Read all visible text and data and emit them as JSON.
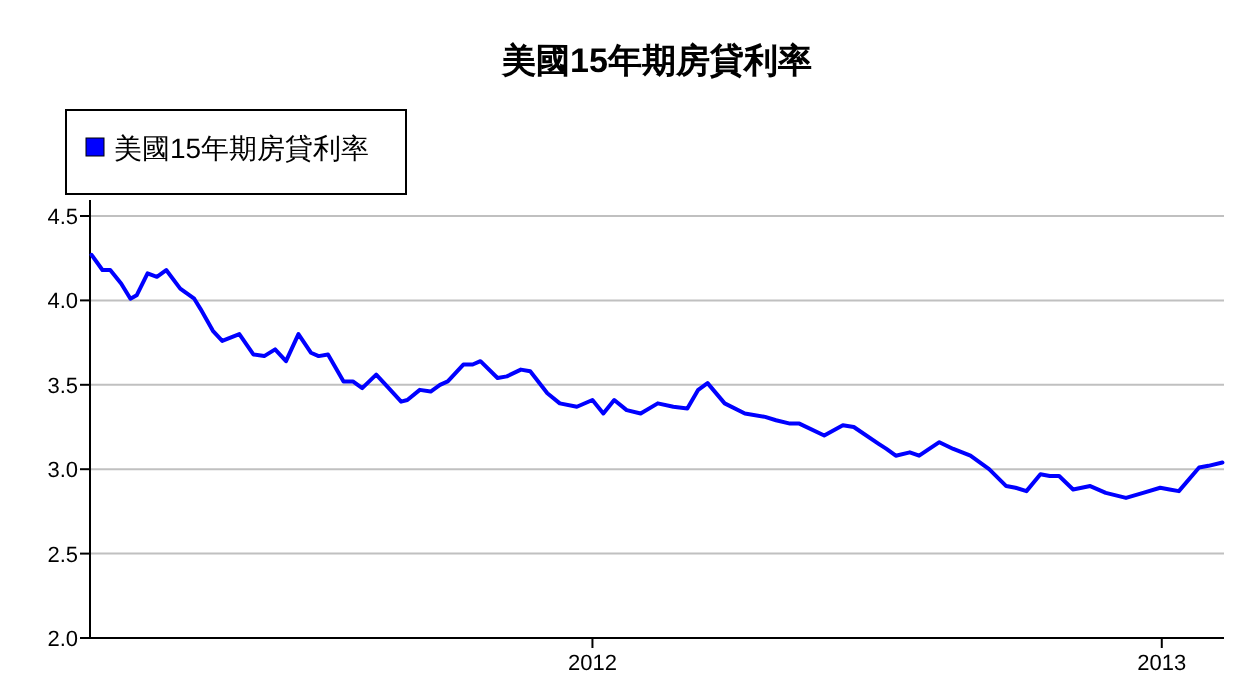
{
  "chart_data": {
    "type": "line",
    "title": "美國15年期房貸利率",
    "x": [
      "2011-02-13",
      "2011-02-20",
      "2011-02-25",
      "2011-03-04",
      "2011-03-10",
      "2011-03-14",
      "2011-03-21",
      "2011-03-27",
      "2011-04-02",
      "2011-04-11",
      "2011-04-20",
      "2011-04-24",
      "2011-05-02",
      "2011-05-08",
      "2011-05-19",
      "2011-05-28",
      "2011-06-04",
      "2011-06-11",
      "2011-06-18",
      "2011-06-26",
      "2011-07-04",
      "2011-07-09",
      "2011-07-15",
      "2011-07-25",
      "2011-07-31",
      "2011-08-06",
      "2011-08-15",
      "2011-08-22",
      "2011-08-31",
      "2011-09-04",
      "2011-09-12",
      "2011-09-19",
      "2011-09-25",
      "2011-09-30",
      "2011-10-10",
      "2011-10-16",
      "2011-10-21",
      "2011-11-01",
      "2011-11-07",
      "2011-11-16",
      "2011-11-22",
      "2011-12-03",
      "2011-12-11",
      "2011-12-22",
      "2012-01-01",
      "2012-01-08",
      "2012-01-15",
      "2012-01-23",
      "2012-02-01",
      "2012-02-12",
      "2012-02-22",
      "2012-03-02",
      "2012-03-09",
      "2012-03-15",
      "2012-03-26",
      "2012-04-08",
      "2012-04-21",
      "2012-04-28",
      "2012-05-07",
      "2012-05-13",
      "2012-05-29",
      "2012-06-10",
      "2012-06-17",
      "2012-07-03",
      "2012-07-08",
      "2012-07-14",
      "2012-07-23",
      "2012-07-29",
      "2012-08-11",
      "2012-08-20",
      "2012-08-31",
      "2012-09-12",
      "2012-09-23",
      "2012-09-29",
      "2012-10-06",
      "2012-10-15",
      "2012-10-21",
      "2012-10-27",
      "2012-11-05",
      "2012-11-16",
      "2012-11-26",
      "2012-12-09",
      "2012-12-20",
      "2012-12-31",
      "2013-01-06",
      "2013-01-12",
      "2013-01-25",
      "2013-01-31",
      "2013-02-09"
    ],
    "series": [
      {
        "name": "美國15年期房貸利率",
        "color": "#0000ff",
        "values": [
          4.27,
          4.18,
          4.18,
          4.1,
          4.01,
          4.03,
          4.16,
          4.14,
          4.18,
          4.07,
          4.01,
          3.95,
          3.82,
          3.76,
          3.8,
          3.68,
          3.67,
          3.71,
          3.64,
          3.8,
          3.69,
          3.67,
          3.68,
          3.52,
          3.52,
          3.48,
          3.56,
          3.49,
          3.4,
          3.41,
          3.47,
          3.46,
          3.5,
          3.52,
          3.62,
          3.62,
          3.64,
          3.54,
          3.55,
          3.59,
          3.58,
          3.45,
          3.39,
          3.37,
          3.41,
          3.33,
          3.41,
          3.35,
          3.33,
          3.39,
          3.37,
          3.36,
          3.47,
          3.51,
          3.39,
          3.33,
          3.31,
          3.29,
          3.27,
          3.27,
          3.2,
          3.26,
          3.25,
          3.15,
          3.12,
          3.08,
          3.1,
          3.08,
          3.16,
          3.12,
          3.08,
          3.0,
          2.9,
          2.89,
          2.87,
          2.97,
          2.96,
          2.96,
          2.88,
          2.9,
          2.86,
          2.83,
          2.86,
          2.89,
          2.88,
          2.87,
          3.01,
          3.02,
          3.04
        ]
      }
    ],
    "xlim": [
      "2011-02-12",
      "2013-02-10"
    ],
    "xticks": [
      "2012",
      "2013"
    ],
    "ylim": [
      2,
      4.5
    ],
    "yticks": [
      {
        "value": 2,
        "label": "2.0"
      },
      {
        "value": 2.5,
        "label": "2.5"
      },
      {
        "value": 3,
        "label": "3.0"
      },
      {
        "value": 3.5,
        "label": "3.5"
      },
      {
        "value": 4,
        "label": "4.0"
      },
      {
        "value": 4.5,
        "label": "4.5"
      }
    ],
    "grid": "y",
    "legend": "top left"
  }
}
